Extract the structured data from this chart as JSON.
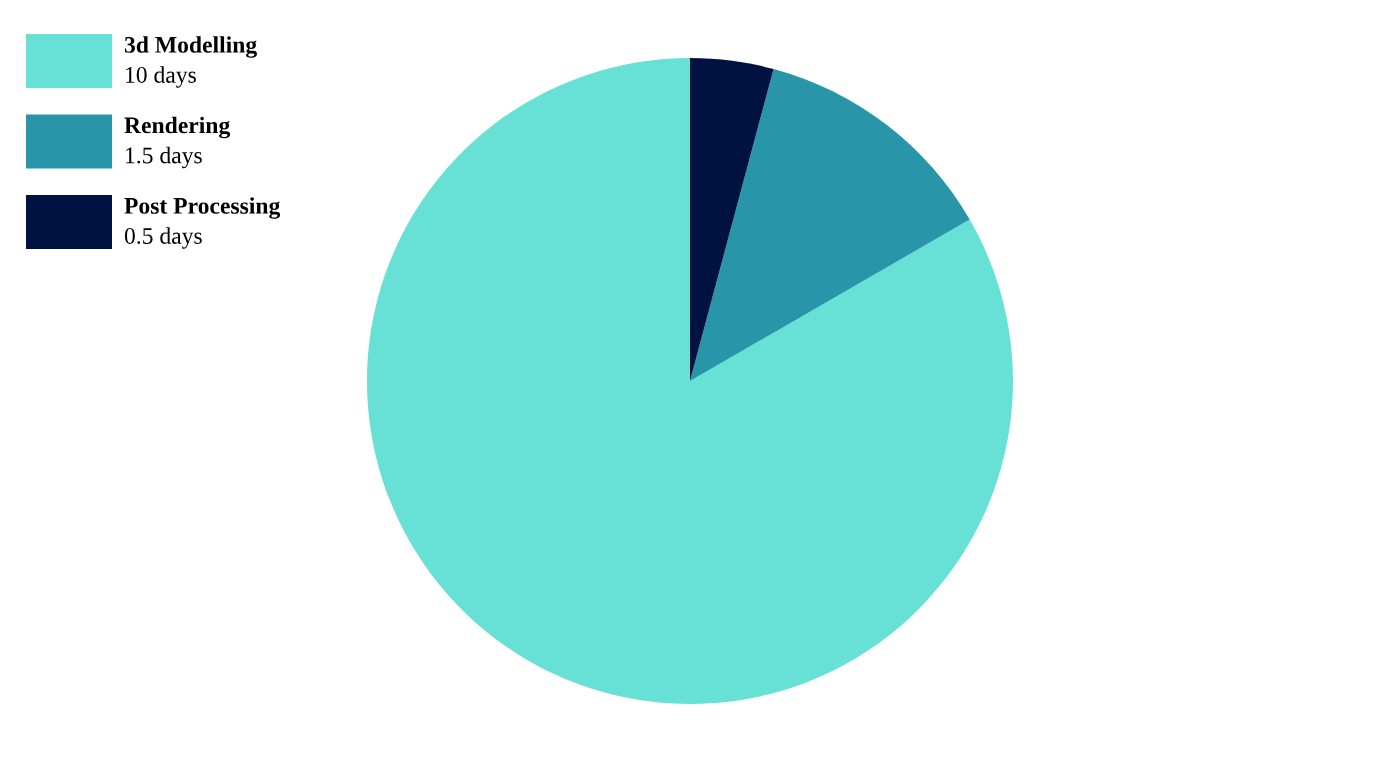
{
  "chart_data": {
    "type": "pie",
    "categories": [
      "3d Modelling",
      "Rendering",
      "Post Processing"
    ],
    "values": [
      10,
      1.5,
      0.5
    ],
    "value_labels": [
      "10 days",
      "1.5 days",
      "0.5 days"
    ],
    "colors": [
      "#67e0d6",
      "#2896a8",
      "#001242"
    ],
    "legend": "top left"
  }
}
